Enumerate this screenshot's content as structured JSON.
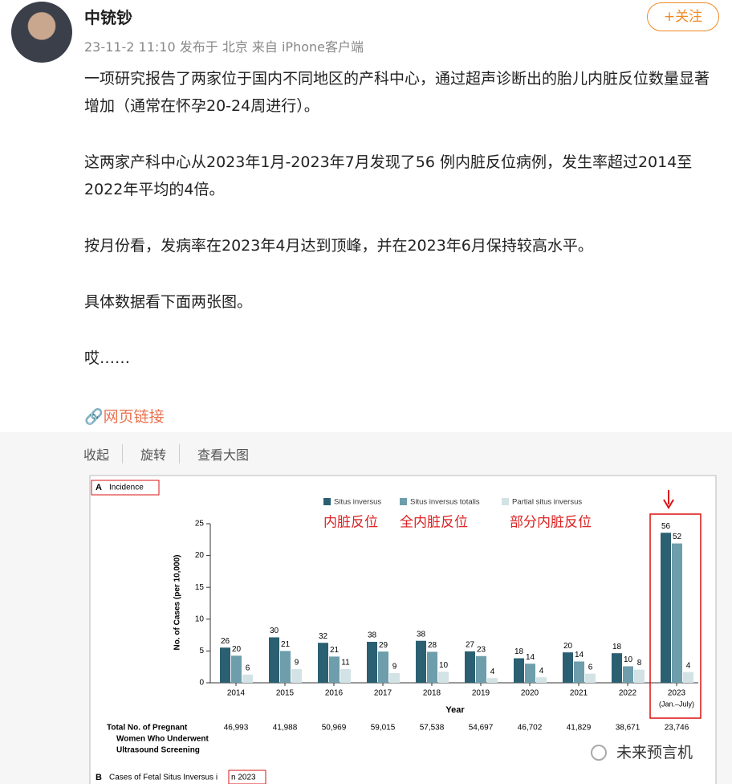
{
  "post": {
    "author": "中铳钞",
    "follow": "+关注",
    "meta": "23-11-2 11:10 发布于 北京 来自 iPhone客户端",
    "paragraphs": [
      "一项研究报告了两家位于国内不同地区的产科中心，通过超声诊断出的胎儿内脏反位数量显著增加（通常在怀孕20-24周进行）。",
      "这两家产科中心从2023年1月-2023年7月发现了56 例内脏反位病例，发生率超过2014至2022年平均的4倍。",
      "按月份看，发病率在2023年4月达到顶峰，并在2023年6月保持较高水平。",
      "具体数据看下面两张图。",
      "哎……"
    ],
    "link": "网页链接"
  },
  "toolbar": [
    "收起",
    "旋转",
    "查看大图"
  ],
  "figure": {
    "panel_label": "A",
    "panel_title": "Incidence",
    "chart_data": {
      "type": "bar",
      "categories": [
        "2014",
        "2015",
        "2016",
        "2017",
        "2018",
        "2019",
        "2020",
        "2021",
        "2022",
        "2023"
      ],
      "category_note": "(Jan.–July)",
      "series": [
        {
          "name": "Situs inversus",
          "color": "#2b5f72",
          "values": [
            5.53,
            7.14,
            6.28,
            6.44,
            6.6,
            4.94,
            3.85,
            4.78,
            4.65,
            23.58
          ],
          "case_counts": [
            "26",
            "30",
            "32",
            "38",
            "38",
            "27",
            "18",
            "20",
            "18",
            "56"
          ]
        },
        {
          "name": "Situs inversus totalis",
          "color": "#6e9dac",
          "values": [
            4.26,
            5.0,
            4.12,
            4.91,
            4.87,
            4.2,
            3.0,
            3.35,
            2.59,
            21.9
          ],
          "case_counts": [
            "20",
            "21",
            "21",
            "29",
            "28",
            "23",
            "14",
            "14",
            "10",
            "52"
          ]
        },
        {
          "name": "Partial situs inversus",
          "color": "#d2e2e5",
          "values": [
            1.28,
            2.14,
            2.16,
            1.53,
            1.74,
            0.73,
            0.86,
            1.43,
            2.07,
            1.68
          ],
          "case_counts": [
            "6",
            "9",
            "11",
            "9",
            "10",
            "4",
            "4",
            "6",
            "8",
            "4"
          ]
        }
      ],
      "annotations": [
        "内脏反位",
        "全内脏反位",
        "部分内脏反位"
      ],
      "ylim": [
        0,
        25
      ],
      "yticks": [
        0,
        5,
        10,
        15,
        20,
        25
      ],
      "xlabel": "Year",
      "ylabel": "No. of Cases (per 10,000)",
      "row_label": [
        "Total No. of Pregnant",
        "Women Who Underwent",
        "Ultrasound Screening"
      ],
      "totals": [
        "46,993",
        "41,988",
        "50,969",
        "59,015",
        "57,538",
        "54,697",
        "46,702",
        "41,829",
        "38,671",
        "23,746"
      ]
    }
  },
  "panel_b": {
    "label": "B",
    "title": "Cases of Fetal Situs Inversus i",
    "title_boxed": "n 2023"
  },
  "watermark": "未来预言机"
}
